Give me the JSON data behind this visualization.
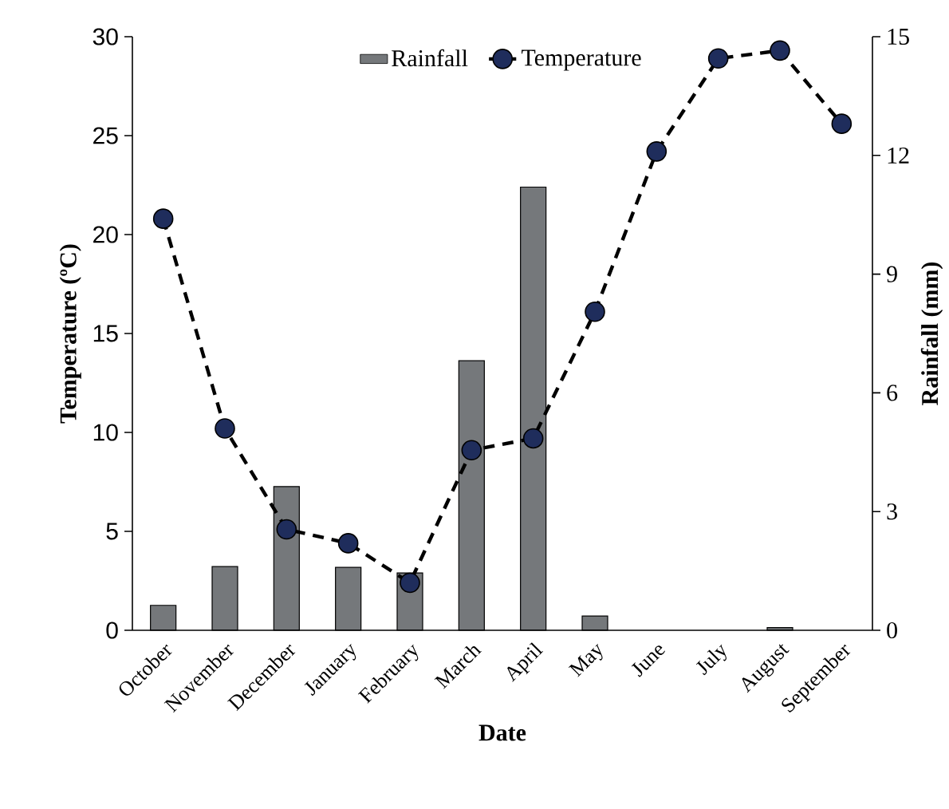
{
  "chart_data": {
    "type": "bar",
    "categories": [
      "October",
      "November",
      "December",
      "January",
      "February",
      "March",
      "April",
      "May",
      "June",
      "July",
      "August",
      "September"
    ],
    "series": [
      {
        "name": "Rainfall",
        "axis": "y2",
        "color": "#75787b",
        "values": [
          0.63,
          1.61,
          3.63,
          1.59,
          1.45,
          6.81,
          11.2,
          0.36,
          0,
          0,
          0.07,
          0
        ]
      },
      {
        "name": "Temperature",
        "type": "line",
        "axis": "y",
        "color": "#1f2d5c",
        "marker": "circle",
        "line_style": "dashed",
        "values": [
          20.8,
          10.2,
          5.1,
          4.4,
          2.4,
          9.1,
          9.7,
          16.1,
          24.2,
          28.9,
          29.3,
          25.6
        ]
      }
    ],
    "xlabel": "Date",
    "ylabel": "Temperature (ºC)",
    "y2label": "Rainfall (mm)",
    "ylim": [
      0,
      30
    ],
    "yticks": [
      0,
      5,
      10,
      15,
      20,
      25,
      30
    ],
    "y2lim": [
      0,
      15
    ],
    "y2ticks": [
      0,
      3,
      6,
      9,
      12,
      15
    ],
    "legend": "top"
  }
}
